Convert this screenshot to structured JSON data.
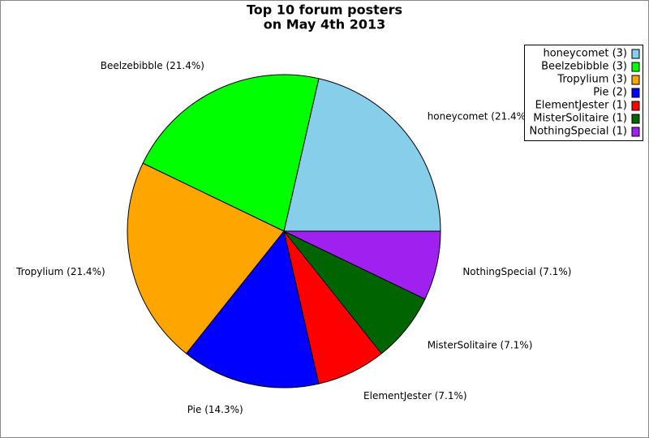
{
  "chart_data": {
    "type": "pie",
    "title": [
      "Top 10 forum posters",
      "on May 4th 2013"
    ],
    "values": [
      3,
      3,
      3,
      2,
      1,
      1,
      1
    ],
    "value_labels": [
      "honeycomet (21.4%)",
      "Beelzebibble (21.4%)",
      "Tropylium (21.4%)",
      "Pie (14.3%)",
      "ElementJester (7.1%)",
      "MisterSolitaire (7.1%)",
      "NothingSpecial (7.1%)"
    ],
    "legend_labels": [
      "honeycomet (3)",
      "Beelzebibble (3)",
      "Tropylium (3)",
      "Pie (2)",
      "ElementJester (1)",
      "MisterSolitaire (1)",
      "NothingSpecial (1)"
    ],
    "colors": [
      "#87ceeb",
      "#00ff00",
      "#ffa500",
      "#0000ff",
      "#ff0000",
      "#006400",
      "#a020f0"
    ],
    "legend": "top-right"
  }
}
